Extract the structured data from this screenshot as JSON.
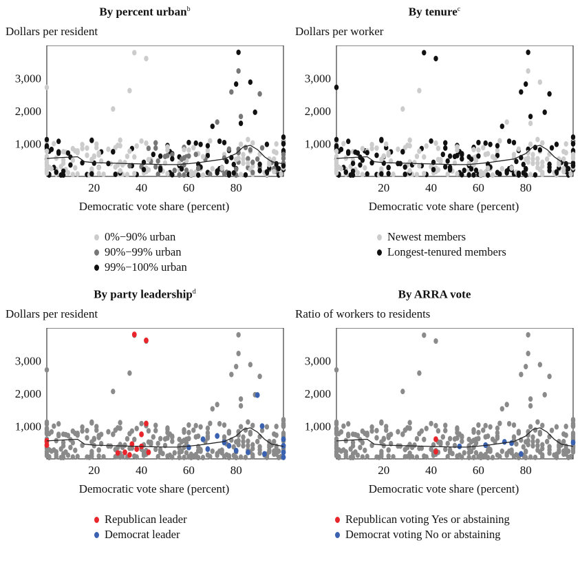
{
  "panels": [
    {
      "title": "By percent urban",
      "note": "b",
      "subtitle": "Dollars per resident",
      "legend": [
        {
          "label": "0%−90% urban",
          "color": "#cccccc"
        },
        {
          "label": "90%−99% urban",
          "color": "#777777"
        },
        {
          "label": "99%−100% urban",
          "color": "#111111"
        }
      ]
    },
    {
      "title": "By tenure",
      "note": "c",
      "subtitle": "Dollars per worker",
      "legend": [
        {
          "label": "Newest members",
          "color": "#cccccc"
        },
        {
          "label": "Longest-tenured members",
          "color": "#111111"
        }
      ]
    },
    {
      "title": "By party leadership",
      "note": "d",
      "subtitle": "Dollars per resident",
      "legend": [
        {
          "label": "Republican leader",
          "color": "#e8262c"
        },
        {
          "label": "Democrat leader",
          "color": "#3a62b0"
        }
      ]
    },
    {
      "title": "By ARRA vote",
      "note": "",
      "subtitle": "Ratio of workers to residents",
      "legend": [
        {
          "label": "Republican voting Yes or abstaining",
          "color": "#e8262c"
        },
        {
          "label": "Democrat voting No or abstaining",
          "color": "#3a62b0"
        }
      ]
    }
  ],
  "chart_data": {
    "type": "scatter",
    "xlabel": "Democratic vote share (percent)",
    "xlim": [
      0,
      100
    ],
    "ylim": [
      0,
      4000
    ],
    "xticks": [
      20,
      40,
      60,
      80
    ],
    "yticks": [
      1000,
      2000,
      3000
    ],
    "xtick_labels": [
      "20",
      "40",
      "60",
      "80"
    ],
    "ytick_labels": [
      "1,000",
      "2,000",
      "3,000"
    ],
    "smoother": {
      "x": [
        0,
        5,
        10,
        13,
        16,
        20,
        25,
        30,
        35,
        40,
        45,
        50,
        55,
        60,
        65,
        70,
        75,
        80,
        83,
        86,
        89,
        92,
        95,
        100
      ],
      "y": [
        550,
        570,
        590,
        600,
        450,
        420,
        410,
        400,
        390,
        380,
        370,
        360,
        360,
        390,
        430,
        480,
        530,
        700,
        900,
        950,
        820,
        600,
        450,
        380
      ]
    },
    "highlight_points": [
      {
        "x": 35,
        "y": 2620
      },
      {
        "x": 37,
        "y": 3780
      },
      {
        "x": 42,
        "y": 3600
      },
      {
        "x": 28,
        "y": 2060
      },
      {
        "x": 40,
        "y": 1080
      },
      {
        "x": 81,
        "y": 3790
      },
      {
        "x": 81,
        "y": 3220
      },
      {
        "x": 80,
        "y": 2820
      },
      {
        "x": 78,
        "y": 2580
      },
      {
        "x": 86,
        "y": 2880
      },
      {
        "x": 90,
        "y": 2520
      },
      {
        "x": 88,
        "y": 1960
      },
      {
        "x": 72,
        "y": 1660
      },
      {
        "x": 70,
        "y": 1530
      },
      {
        "x": 82,
        "y": 1830
      },
      {
        "x": 82,
        "y": 1620
      },
      {
        "x": 0,
        "y": 2720
      },
      {
        "x": 100,
        "y": 1200
      }
    ],
    "party_leader_points": {
      "republican": [
        {
          "x": 0,
          "y": 550
        },
        {
          "x": 0,
          "y": 420
        },
        {
          "x": 37,
          "y": 3800
        },
        {
          "x": 42,
          "y": 3620
        },
        {
          "x": 42,
          "y": 1080
        },
        {
          "x": 40,
          "y": 750
        },
        {
          "x": 36,
          "y": 450
        },
        {
          "x": 38,
          "y": 300
        },
        {
          "x": 33,
          "y": 200
        },
        {
          "x": 30,
          "y": 180
        },
        {
          "x": 40,
          "y": 380
        },
        {
          "x": 35,
          "y": 120
        },
        {
          "x": 43,
          "y": 200
        }
      ],
      "democrat": [
        {
          "x": 89,
          "y": 1950
        },
        {
          "x": 91,
          "y": 1000
        },
        {
          "x": 72,
          "y": 700
        },
        {
          "x": 66,
          "y": 600
        },
        {
          "x": 75,
          "y": 500
        },
        {
          "x": 77,
          "y": 400
        },
        {
          "x": 60,
          "y": 350
        },
        {
          "x": 68,
          "y": 300
        },
        {
          "x": 80,
          "y": 250
        },
        {
          "x": 85,
          "y": 200
        },
        {
          "x": 92,
          "y": 150
        },
        {
          "x": 100,
          "y": 600
        },
        {
          "x": 100,
          "y": 400
        },
        {
          "x": 100,
          "y": 200
        },
        {
          "x": 100,
          "y": 50
        }
      ]
    },
    "arra_vote_points": {
      "republican": [
        {
          "x": 42,
          "y": 600
        },
        {
          "x": 42,
          "y": 220
        }
      ],
      "democrat": [
        {
          "x": 52,
          "y": 380
        },
        {
          "x": 63,
          "y": 420
        },
        {
          "x": 71,
          "y": 520
        },
        {
          "x": 74,
          "y": 480
        },
        {
          "x": 78,
          "y": 150
        },
        {
          "x": 100,
          "y": 500
        }
      ]
    }
  }
}
